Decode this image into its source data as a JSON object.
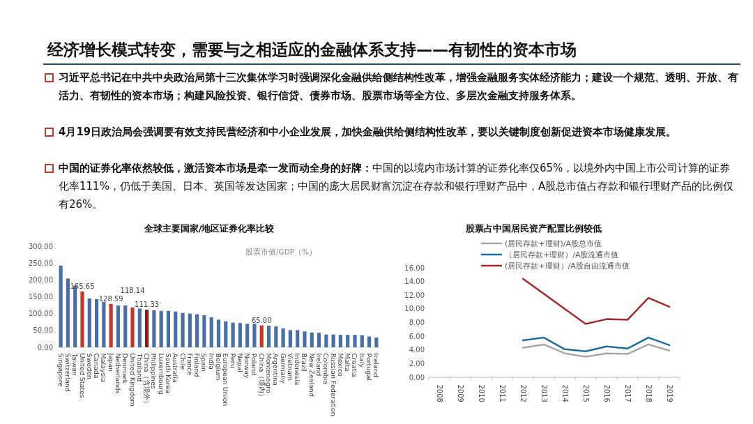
{
  "chart_data": [
    {
      "type": "other",
      "title": "经济增长模式转变，需要与之相适应的金融体系支持——有韧性的资本市场",
      "annotations": [
        "**习近平总书记在中共中央政治局第十三次集体学习时强调深化金融供给侧结构性改革，增强金融服务实体经济能力；建设一个规范、透明、开放、有活力、有韧性的资本市场；构建风险投资、银行信贷、债券市场、股票市场等全方位、多层次金融支持服务体系。**",
        "**4月19日政治局会强调要有效支持民营经济和中小企业发展，加快金融供给侧结构性改革，要以关键制度创新促进资本市场健康发展。**",
        "**中国的证券化率依然较低，激活资本市场是牵一发而动全身的好牌：**中国的以境内市场计算的证券化率仅65%，以境外内中国上市公司计算的证券化率111%，仍低于美国、日本、英国等发达国家；中国的庞大居民财富沉淀在存款和银行理财产品中，A股总市值占存款和银行理财产品的比例仅有26%。"
      ]
    },
    {
      "type": "bar",
      "title": "全球主要国家/地区证券化率比较",
      "annotations": [
        "股票市值/GDP（%）"
      ],
      "categories": [
        "Singapore",
        "Switzerland",
        "Taiwan",
        "United States",
        "Sweden",
        "Canada",
        "Malaysia",
        "Japan",
        "Netherlands",
        "Denmark",
        "United Kingdom",
        "Thailand",
        "China（含境外）",
        "Philippines",
        "Luxembourg",
        "South Korea",
        "Australia",
        "Chile",
        "France",
        "Finland",
        "Spain",
        "India",
        "Belgium",
        "European Union",
        "Peru",
        "Nepal",
        "Norway",
        "Poland",
        "China（境内）",
        "Montenegro",
        "Argentina",
        "Germany",
        "Vietnam",
        "Indonesia",
        "Brazil",
        "New Zealand",
        "Ireland",
        "Colombia",
        "Russian Federation",
        "Mexico",
        "Malta",
        "Croatia",
        "Italy",
        "Portugal",
        "Iceland"
      ],
      "values": [
        242,
        204,
        183,
        165.65,
        145,
        143,
        135,
        128.59,
        124,
        124,
        118.14,
        115,
        111.33,
        110,
        108,
        108,
        106,
        102,
        100,
        98,
        95,
        89,
        82,
        77,
        73,
        72,
        70,
        70,
        65,
        64,
        62,
        56,
        51,
        51,
        47,
        44,
        43,
        38,
        38,
        37,
        37,
        37,
        36,
        32,
        29
      ],
      "colors": [
        "#4a6fa5",
        "#4a6fa5",
        "#4a6fa5",
        "#c0392b",
        "#4a6fa5",
        "#4a6fa5",
        "#4a6fa5",
        "#c0392b",
        "#4a6fa5",
        "#4a6fa5",
        "#c0392b",
        "#4a6fa5",
        "#8b1a1a",
        "#4a6fa5",
        "#4a6fa5",
        "#4a6fa5",
        "#4a6fa5",
        "#4a6fa5",
        "#4a6fa5",
        "#4a6fa5",
        "#4a6fa5",
        "#4a6fa5",
        "#4a6fa5",
        "#4a6fa5",
        "#4a6fa5",
        "#4a6fa5",
        "#4a6fa5",
        "#4a6fa5",
        "#c0392b",
        "#4a6fa5",
        "#4a6fa5",
        "#4a6fa5",
        "#4a6fa5",
        "#4a6fa5",
        "#4a6fa5",
        "#4a6fa5",
        "#4a6fa5",
        "#4a6fa5",
        "#4a6fa5",
        "#4a6fa5",
        "#4a6fa5",
        "#4a6fa5",
        "#4a6fa5",
        "#4a6fa5",
        "#4a6fa5"
      ],
      "value_labels": [
        null,
        null,
        null,
        "165.65",
        null,
        null,
        null,
        "128.59",
        null,
        null,
        "118.14",
        null,
        "111.33",
        null,
        null,
        null,
        null,
        null,
        null,
        null,
        null,
        null,
        null,
        null,
        null,
        null,
        null,
        null,
        "65.00",
        null,
        null,
        null,
        null,
        null,
        null,
        null,
        null,
        null,
        null,
        null,
        null,
        null,
        null,
        null,
        null
      ],
      "ylim": [
        0,
        300
      ],
      "yticks": [
        {
          "value": 0,
          "label": "0.00"
        },
        {
          "value": 50,
          "label": "50.00"
        },
        {
          "value": 100,
          "label": "100.00"
        },
        {
          "value": 150,
          "label": "150.00"
        },
        {
          "value": 200,
          "label": "200.00"
        },
        {
          "value": 250,
          "label": "250.00"
        },
        {
          "value": 300,
          "label": "300.00"
        }
      ]
    },
    {
      "type": "line",
      "title": "股票占中国居民资产配置比例较低",
      "categories": [
        "2008",
        "2009",
        "2010",
        "2011",
        "2012",
        "2013",
        "2014",
        "2015",
        "2016",
        "2017",
        "2018",
        "2019"
      ],
      "series": [
        {
          "name": "(居民存款+理财)/A股总市值",
          "color": "#a6a6a6",
          "values": [
            null,
            null,
            null,
            null,
            4.3,
            4.8,
            3.5,
            3.0,
            3.5,
            3.4,
            4.8,
            3.9
          ]
        },
        {
          "name": "（居民存款+理财）/A股流通市值",
          "color": "#1f6e9c",
          "values": [
            null,
            null,
            null,
            null,
            5.4,
            5.8,
            4.1,
            3.8,
            4.5,
            4.2,
            5.8,
            4.7
          ]
        },
        {
          "name": "(居民存款+理财）/A股自由流通市值",
          "color": "#a52a2a",
          "values": [
            null,
            null,
            null,
            null,
            14.4,
            12.2,
            10.0,
            7.8,
            8.5,
            8.4,
            11.6,
            10.3
          ]
        }
      ],
      "ylim": [
        0,
        16
      ],
      "yticks": [
        {
          "value": 0,
          "label": "0.00"
        },
        {
          "value": 2,
          "label": "2.00"
        },
        {
          "value": 4,
          "label": "4.00"
        },
        {
          "value": 6,
          "label": "6.00"
        },
        {
          "value": 8,
          "label": "8.00"
        },
        {
          "value": 10,
          "label": "10.00"
        },
        {
          "value": 12,
          "label": "12.00"
        },
        {
          "value": 14,
          "label": "14.00"
        },
        {
          "value": 16,
          "label": "16.00"
        }
      ],
      "legend": "top",
      "line_style": "solid",
      "marker": "none"
    }
  ]
}
